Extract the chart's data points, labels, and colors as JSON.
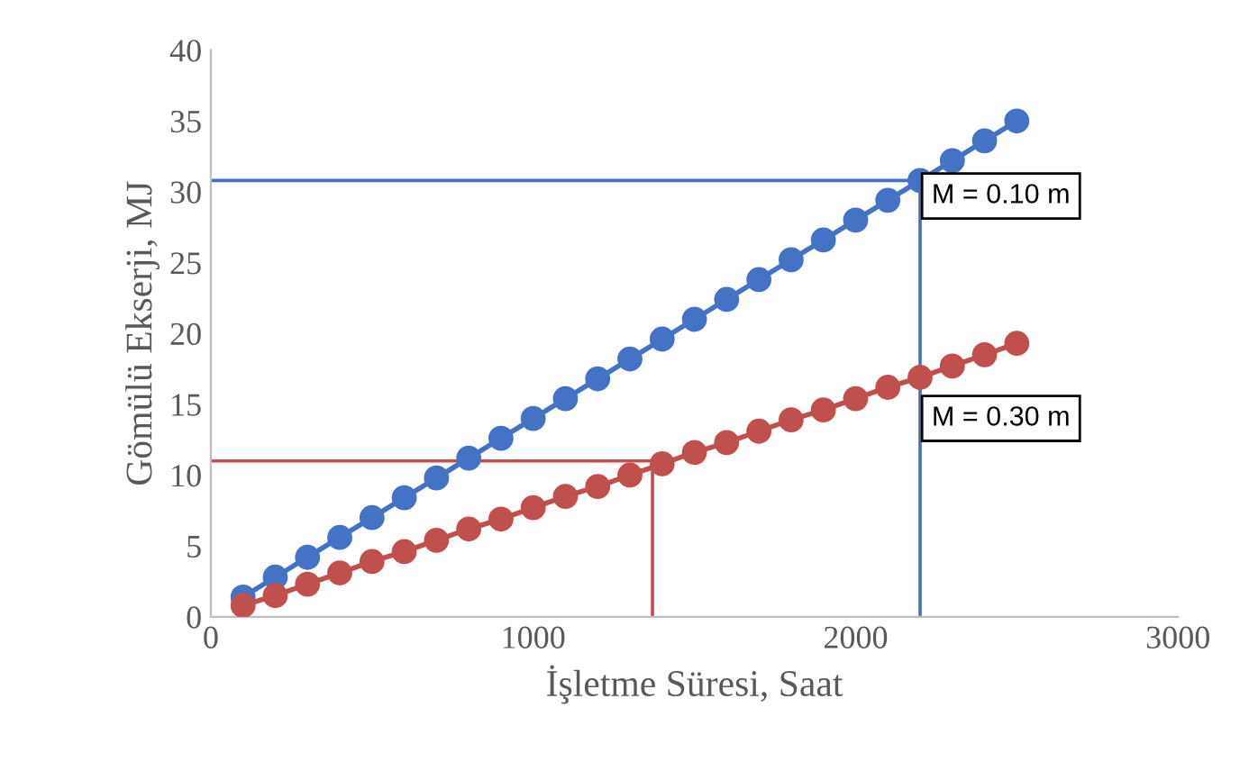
{
  "chart_data": {
    "type": "line",
    "xlabel": "İşletme Süresi, Saat",
    "ylabel": "Gömülü Ekserji, MJ",
    "x": [
      100,
      200,
      300,
      400,
      500,
      600,
      700,
      800,
      900,
      1000,
      1100,
      1200,
      1300,
      1400,
      1500,
      1600,
      1700,
      1800,
      1900,
      2000,
      2100,
      2200,
      2300,
      2400,
      2500
    ],
    "series": [
      {
        "name": "M = 0.10 m",
        "color": "#4472c4",
        "values": [
          1.4,
          2.8,
          4.2,
          5.6,
          7.0,
          8.4,
          9.8,
          11.2,
          12.6,
          14.0,
          15.4,
          16.8,
          18.2,
          19.6,
          21.0,
          22.4,
          23.8,
          25.2,
          26.6,
          28.0,
          29.4,
          30.8,
          32.2,
          33.6,
          35.0
        ]
      },
      {
        "name": "M = 0.30 m",
        "color": "#c0504d",
        "values": [
          0.8,
          1.5,
          2.3,
          3.1,
          3.9,
          4.6,
          5.4,
          6.2,
          6.9,
          7.7,
          8.5,
          9.2,
          10.0,
          10.8,
          11.6,
          12.3,
          13.1,
          13.9,
          14.6,
          15.4,
          16.2,
          16.9,
          17.7,
          18.5,
          19.3
        ]
      }
    ],
    "xlim": [
      0,
      3000
    ],
    "xticks": [
      0,
      1000,
      2000,
      3000
    ],
    "ylim": [
      0,
      40
    ],
    "yticks": [
      0,
      5,
      10,
      15,
      20,
      25,
      30,
      35,
      40
    ],
    "ref_lines": [
      {
        "axis": "y",
        "value": 30.8,
        "color": "#4472c4"
      },
      {
        "axis": "x",
        "value": 2200,
        "color": "#4472c4"
      },
      {
        "axis": "y",
        "value": 11,
        "color": "#c0504d"
      },
      {
        "axis": "x",
        "value": 1370,
        "color": "#c0504d"
      }
    ],
    "marker": "circle",
    "line_style": "solid",
    "grid": false
  }
}
